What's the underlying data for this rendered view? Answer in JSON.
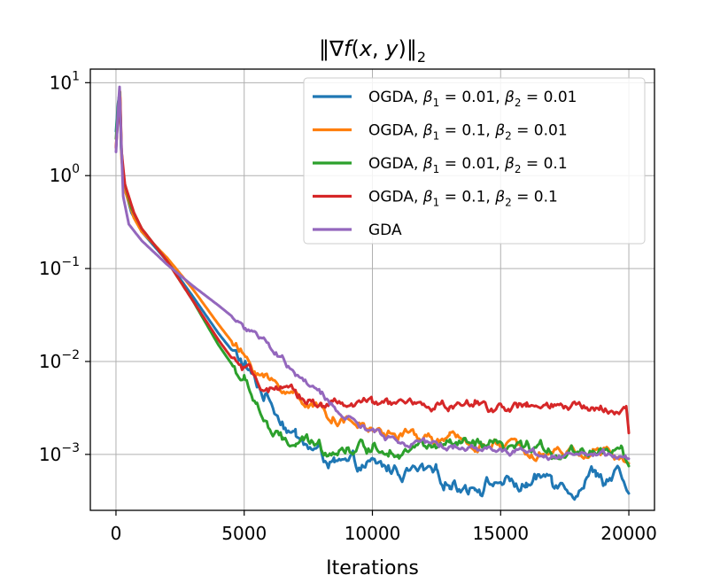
{
  "chart_data": {
    "type": "line",
    "title_parts": [
      "‖∇",
      "f",
      "(",
      "x",
      ", ",
      "y",
      ")‖",
      "2"
    ],
    "xlabel": "Iterations",
    "ylabel": "",
    "x_scale": "linear",
    "y_scale": "log",
    "xlim": [
      -1000,
      21000
    ],
    "ylim": [
      0.00025,
      14
    ],
    "x_ticks": [
      0,
      5000,
      10000,
      15000,
      20000
    ],
    "x_tick_labels": [
      "0",
      "5000",
      "10000",
      "15000",
      "20000"
    ],
    "y_ticks": [
      0.001,
      0.01,
      0.1,
      1,
      10
    ],
    "y_tick_labels": [
      {
        "base": "10",
        "exp": "−3"
      },
      {
        "base": "10",
        "exp": "−2"
      },
      {
        "base": "10",
        "exp": "−1"
      },
      {
        "base": "10",
        "exp": "0"
      },
      {
        "base": "10",
        "exp": "1"
      }
    ],
    "grid": true,
    "legend_position": "top-right",
    "series": [
      {
        "name_parts": {
          "algo": "OGDA",
          "b1": "0.01",
          "b2": "0.01"
        },
        "color": "#1f77b4",
        "points": [
          [
            0,
            3.0
          ],
          [
            80,
            6.0
          ],
          [
            150,
            8.0
          ],
          [
            200,
            2.0
          ],
          [
            300,
            0.8
          ],
          [
            600,
            0.4
          ],
          [
            1000,
            0.25
          ],
          [
            2000,
            0.12
          ],
          [
            3000,
            0.05
          ],
          [
            4000,
            0.02
          ],
          [
            5000,
            0.009
          ],
          [
            5500,
            0.0055
          ],
          [
            6000,
            0.0038
          ],
          [
            6500,
            0.0025
          ],
          [
            7000,
            0.0016
          ],
          [
            7500,
            0.0012
          ],
          [
            8000,
            0.001
          ],
          [
            8500,
            0.0008
          ],
          [
            9000,
            0.0007
          ],
          [
            10000,
            0.00072
          ],
          [
            11000,
            0.00068
          ],
          [
            12000,
            0.00062
          ],
          [
            12500,
            0.00055
          ],
          [
            13000,
            0.0005
          ],
          [
            14000,
            0.00048
          ],
          [
            15000,
            0.00052
          ],
          [
            16000,
            0.00045
          ],
          [
            17000,
            0.0006
          ],
          [
            18000,
            0.00045
          ],
          [
            18700,
            0.0007
          ],
          [
            19000,
            0.00055
          ],
          [
            19500,
            0.0006
          ],
          [
            20000,
            0.00038
          ]
        ],
        "noise": 0.12
      },
      {
        "name_parts": {
          "algo": "OGDA",
          "b1": "0.1",
          "b2": "0.01"
        },
        "color": "#ff7f0e",
        "points": [
          [
            0,
            2.0
          ],
          [
            100,
            6.0
          ],
          [
            160,
            8.0
          ],
          [
            220,
            1.5
          ],
          [
            350,
            0.7
          ],
          [
            700,
            0.35
          ],
          [
            1000,
            0.25
          ],
          [
            2000,
            0.13
          ],
          [
            3000,
            0.06
          ],
          [
            4000,
            0.025
          ],
          [
            5000,
            0.011
          ],
          [
            5500,
            0.008
          ],
          [
            6000,
            0.006
          ],
          [
            7000,
            0.0045
          ],
          [
            8000,
            0.003
          ],
          [
            9000,
            0.0023
          ],
          [
            10000,
            0.0018
          ],
          [
            11000,
            0.0016
          ],
          [
            12000,
            0.0015
          ],
          [
            13000,
            0.0014
          ],
          [
            14000,
            0.0013
          ],
          [
            15000,
            0.0012
          ],
          [
            16000,
            0.0012
          ],
          [
            17000,
            0.0011
          ],
          [
            18000,
            0.0011
          ],
          [
            19000,
            0.00105
          ],
          [
            20000,
            0.0008
          ]
        ],
        "noise": 0.09
      },
      {
        "name_parts": {
          "algo": "OGDA",
          "b1": "0.01",
          "b2": "0.1"
        },
        "color": "#2ca02c",
        "points": [
          [
            0,
            2.5
          ],
          [
            90,
            6.0
          ],
          [
            150,
            8.0
          ],
          [
            210,
            2.0
          ],
          [
            300,
            0.9
          ],
          [
            600,
            0.45
          ],
          [
            1000,
            0.27
          ],
          [
            2000,
            0.12
          ],
          [
            3000,
            0.045
          ],
          [
            4000,
            0.015
          ],
          [
            5000,
            0.006
          ],
          [
            5500,
            0.0035
          ],
          [
            6000,
            0.0018
          ],
          [
            6500,
            0.0013
          ],
          [
            7000,
            0.0013
          ],
          [
            8000,
            0.0012
          ],
          [
            9000,
            0.0012
          ],
          [
            10000,
            0.0012
          ],
          [
            11000,
            0.0012
          ],
          [
            12000,
            0.0012
          ],
          [
            13000,
            0.0012
          ],
          [
            14000,
            0.0012
          ],
          [
            15000,
            0.0011
          ],
          [
            16000,
            0.0011
          ],
          [
            17000,
            0.0011
          ],
          [
            18000,
            0.0011
          ],
          [
            19000,
            0.0012
          ],
          [
            19700,
            0.0011
          ],
          [
            20000,
            0.00075
          ]
        ],
        "noise": 0.1
      },
      {
        "name_parts": {
          "algo": "OGDA",
          "b1": "0.1",
          "b2": "0.1"
        },
        "color": "#d62728",
        "points": [
          [
            0,
            2.0
          ],
          [
            100,
            5.0
          ],
          [
            160,
            7.0
          ],
          [
            220,
            1.8
          ],
          [
            350,
            0.8
          ],
          [
            700,
            0.4
          ],
          [
            1000,
            0.27
          ],
          [
            2000,
            0.12
          ],
          [
            3000,
            0.045
          ],
          [
            4000,
            0.017
          ],
          [
            4500,
            0.011
          ],
          [
            5000,
            0.008
          ],
          [
            5500,
            0.006
          ],
          [
            6000,
            0.005
          ],
          [
            7000,
            0.0042
          ],
          [
            8000,
            0.0036
          ],
          [
            9000,
            0.0035
          ],
          [
            10000,
            0.0034
          ],
          [
            12000,
            0.0034
          ],
          [
            14000,
            0.0033
          ],
          [
            16000,
            0.0032
          ],
          [
            18000,
            0.0031
          ],
          [
            19500,
            0.0031
          ],
          [
            19900,
            0.0033
          ],
          [
            20000,
            0.0017
          ]
        ],
        "noise": 0.08
      },
      {
        "name": "GDA",
        "color": "#9467bd",
        "points": [
          [
            0,
            1.8
          ],
          [
            80,
            5.0
          ],
          [
            140,
            9.0
          ],
          [
            190,
            3.0
          ],
          [
            280,
            0.6
          ],
          [
            500,
            0.3
          ],
          [
            1000,
            0.2
          ],
          [
            2000,
            0.11
          ],
          [
            3000,
            0.065
          ],
          [
            4000,
            0.04
          ],
          [
            5000,
            0.024
          ],
          [
            6000,
            0.014
          ],
          [
            7000,
            0.0075
          ],
          [
            8000,
            0.0042
          ],
          [
            9000,
            0.0025
          ],
          [
            10000,
            0.0017
          ],
          [
            11000,
            0.0014
          ],
          [
            12000,
            0.0013
          ],
          [
            13000,
            0.0012
          ],
          [
            14000,
            0.0012
          ],
          [
            15000,
            0.0011
          ],
          [
            16000,
            0.0011
          ],
          [
            17000,
            0.001
          ],
          [
            18000,
            0.001
          ],
          [
            19000,
            0.00095
          ],
          [
            20000,
            0.0009
          ]
        ],
        "noise": 0.06
      }
    ]
  }
}
